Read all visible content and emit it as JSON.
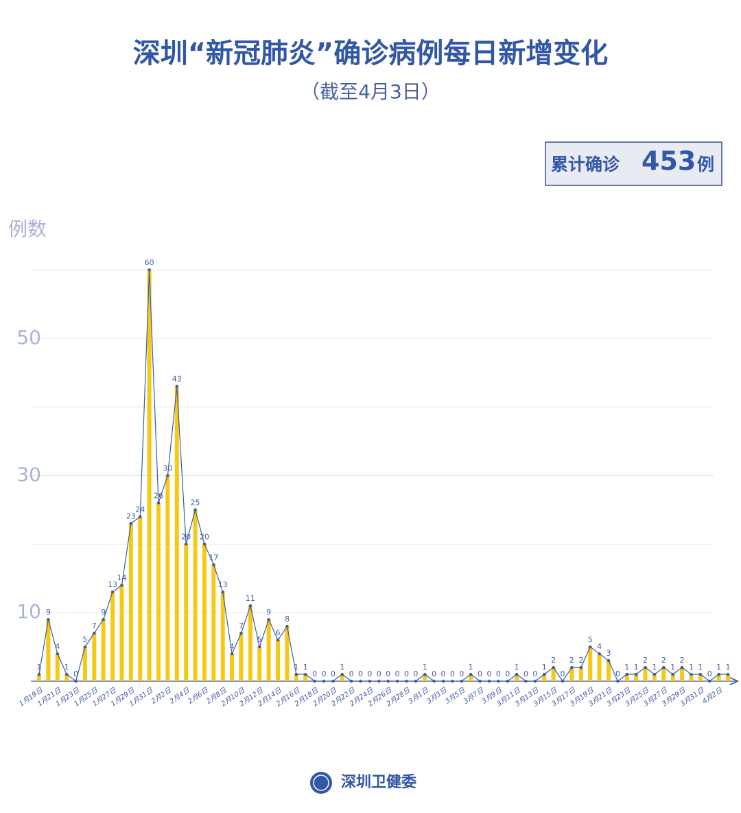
{
  "chart_data": {
    "type": "bar-line",
    "title": "深圳“新冠肺炎”确诊病例每日新增变化",
    "subtitle": "（截至4月3日）",
    "total_label": {
      "prefix": "累计确诊",
      "value": 453,
      "suffix": "例"
    },
    "y_label": "例数",
    "source": "深圳卫健委",
    "categories": [
      "1月19日",
      null,
      "1月21日",
      null,
      "1月23日",
      null,
      "1月25日",
      null,
      "1月27日",
      null,
      "1月29日",
      null,
      "1月31日",
      null,
      "2月2日",
      null,
      "2月4日",
      null,
      "2月6日",
      null,
      "2月8日",
      null,
      "2月10日",
      null,
      "2月12日",
      null,
      "2月14日",
      null,
      "2月16日",
      null,
      "2月18日",
      null,
      "2月20日",
      null,
      "2月22日",
      null,
      "2月24日",
      null,
      "2月26日",
      null,
      "2月28日",
      null,
      "3月1日",
      null,
      "3月3日",
      null,
      "3月5日",
      null,
      "3月7日",
      null,
      "3月9日",
      null,
      "3月11日",
      null,
      "3月13日",
      null,
      "3月15日",
      null,
      "3月17日",
      null,
      "3月19日",
      null,
      "3月21日",
      null,
      "3月23日",
      null,
      "3月25日",
      null,
      "3月27日",
      null,
      "3月29日",
      null,
      "3月31日",
      null,
      "4月2日",
      null
    ],
    "values": [
      1,
      9,
      4,
      1,
      0,
      5,
      7,
      9,
      13,
      14,
      23,
      24,
      60,
      26,
      30,
      43,
      20,
      25,
      20,
      17,
      13,
      4,
      7,
      11,
      5,
      9,
      6,
      8,
      1,
      1,
      0,
      0,
      0,
      1,
      0,
      0,
      0,
      0,
      0,
      0,
      0,
      0,
      1,
      0,
      0,
      0,
      0,
      1,
      0,
      0,
      0,
      0,
      1,
      0,
      0,
      1,
      2,
      0,
      2,
      2,
      5,
      4,
      3,
      0,
      1,
      1,
      2,
      1,
      2,
      1,
      2,
      1,
      1,
      0,
      1,
      1
    ],
    "bar_color": "#f6c915",
    "line_color": "#3d5aa6",
    "ylim": [
      0,
      60
    ],
    "yticks": [
      10,
      30,
      50
    ],
    "grid_lines": [
      10,
      20,
      30,
      40,
      50,
      60
    ],
    "grid": true
  }
}
